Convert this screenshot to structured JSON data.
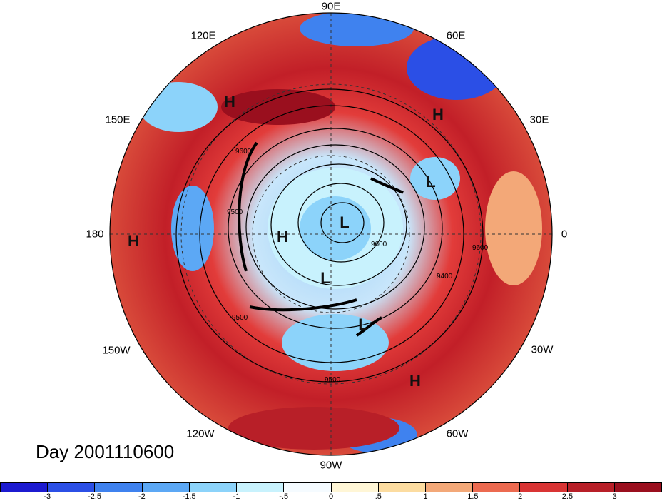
{
  "map": {
    "lon_labels": [
      "90E",
      "60E",
      "30E",
      "0",
      "30W",
      "60W",
      "90W",
      "120W",
      "150W",
      "180",
      "150E",
      "120E"
    ],
    "contour_labels": [
      "9600",
      "9500",
      "9500",
      "9400",
      "9500",
      "9600",
      "9600"
    ],
    "pressure_centers": [
      "H",
      "H",
      "H",
      "L",
      "L",
      "H",
      "L",
      "L",
      "H"
    ],
    "day_label": "Day 2001110600"
  },
  "colorbar": {
    "ticks": [
      "-3",
      "-2.5",
      "-2",
      "-1.5",
      "-1",
      "-.5",
      "0",
      ".5",
      "1",
      "1.5",
      "2",
      "2.5",
      "3"
    ],
    "colors": [
      "#1c1ad0",
      "#2b4fe6",
      "#3f82ef",
      "#5ca8f5",
      "#8cd3fa",
      "#c8f2fd",
      "#f5fbff",
      "#fff6d6",
      "#fcdca0",
      "#f3a878",
      "#ec6a50",
      "#d93434",
      "#b81f28",
      "#9a0f1e"
    ]
  }
}
